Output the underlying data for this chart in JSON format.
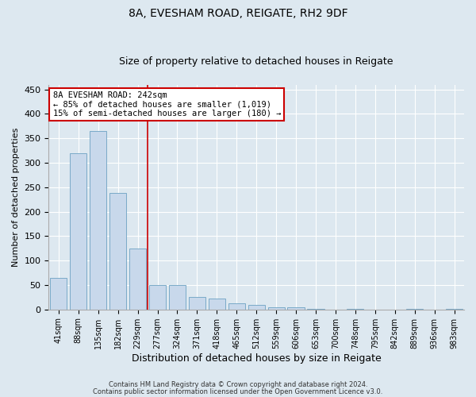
{
  "title1": "8A, EVESHAM ROAD, REIGATE, RH2 9DF",
  "title2": "Size of property relative to detached houses in Reigate",
  "xlabel": "Distribution of detached houses by size in Reigate",
  "ylabel": "Number of detached properties",
  "footer1": "Contains HM Land Registry data © Crown copyright and database right 2024.",
  "footer2": "Contains public sector information licensed under the Open Government Licence v3.0.",
  "categories": [
    "41sqm",
    "88sqm",
    "135sqm",
    "182sqm",
    "229sqm",
    "277sqm",
    "324sqm",
    "371sqm",
    "418sqm",
    "465sqm",
    "512sqm",
    "559sqm",
    "606sqm",
    "653sqm",
    "700sqm",
    "748sqm",
    "795sqm",
    "842sqm",
    "889sqm",
    "936sqm",
    "983sqm"
  ],
  "values": [
    65,
    320,
    365,
    238,
    125,
    50,
    50,
    25,
    22,
    13,
    10,
    5,
    5,
    1,
    0,
    1,
    0,
    0,
    1,
    0,
    1
  ],
  "bar_color": "#c8d8eb",
  "bar_edge_color": "#7aaac8",
  "red_line_index": 4.5,
  "annotation_title": "8A EVESHAM ROAD: 242sqm",
  "annotation_line1": "← 85% of detached houses are smaller (1,019)",
  "annotation_line2": "15% of semi-detached houses are larger (180) →",
  "ylim": [
    0,
    460
  ],
  "yticks": [
    0,
    50,
    100,
    150,
    200,
    250,
    300,
    350,
    400,
    450
  ],
  "background_color": "#dde8f0",
  "plot_bg_color": "#dde8f0",
  "grid_color": "#ffffff",
  "annotation_box_color": "#ffffff",
  "annotation_border_color": "#cc0000",
  "red_line_color": "#cc0000",
  "title1_fontsize": 10,
  "title2_fontsize": 9,
  "ylabel_fontsize": 8,
  "xlabel_fontsize": 9
}
